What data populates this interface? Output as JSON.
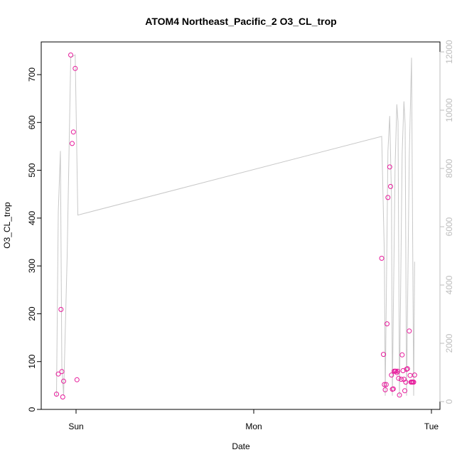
{
  "chart_data": {
    "type": "scatter",
    "title": "ATOM4 Northeast_Pacific_2 O3_CL_trop",
    "xlabel": "Date",
    "ylabel": "O3_CL_trop",
    "x_ticks": [
      "Sun",
      "Mon",
      "Tue"
    ],
    "ylim": [
      0,
      760
    ],
    "yticks": [
      0,
      100,
      200,
      300,
      400,
      500,
      600,
      700
    ],
    "y2lim": [
      0,
      12300
    ],
    "y2ticks": [
      0,
      2000,
      4000,
      6000,
      8000,
      10000,
      12000
    ],
    "grid": false,
    "series": [
      {
        "kind": "points",
        "axis": "left",
        "color": "#e6199a",
        "points": [
          {
            "day": -0.11,
            "value": 32
          },
          {
            "day": -0.1,
            "value": 74
          },
          {
            "day": -0.085,
            "value": 209
          },
          {
            "day": -0.08,
            "value": 79
          },
          {
            "day": -0.075,
            "value": 26
          },
          {
            "day": -0.07,
            "value": 59
          },
          {
            "day": -0.03,
            "value": 741
          },
          {
            "day": -0.022,
            "value": 556
          },
          {
            "day": -0.015,
            "value": 580
          },
          {
            "day": -0.005,
            "value": 713
          },
          {
            "day": 0.005,
            "value": 62
          },
          {
            "day": 1.72,
            "value": 316
          },
          {
            "day": 1.73,
            "value": 115
          },
          {
            "day": 1.735,
            "value": 52
          },
          {
            "day": 1.74,
            "value": 41
          },
          {
            "day": 1.745,
            "value": 52
          },
          {
            "day": 1.75,
            "value": 179
          },
          {
            "day": 1.755,
            "value": 443
          },
          {
            "day": 1.765,
            "value": 507
          },
          {
            "day": 1.77,
            "value": 466
          },
          {
            "day": 1.775,
            "value": 72
          },
          {
            "day": 1.78,
            "value": 42
          },
          {
            "day": 1.785,
            "value": 43
          },
          {
            "day": 1.79,
            "value": 80
          },
          {
            "day": 1.795,
            "value": 80
          },
          {
            "day": 1.8,
            "value": 80
          },
          {
            "day": 1.805,
            "value": 77
          },
          {
            "day": 1.81,
            "value": 80
          },
          {
            "day": 1.815,
            "value": 65
          },
          {
            "day": 1.82,
            "value": 30
          },
          {
            "day": 1.83,
            "value": 63
          },
          {
            "day": 1.835,
            "value": 114
          },
          {
            "day": 1.84,
            "value": 81
          },
          {
            "day": 1.845,
            "value": 63
          },
          {
            "day": 1.85,
            "value": 39
          },
          {
            "day": 1.855,
            "value": 57
          },
          {
            "day": 1.86,
            "value": 84
          },
          {
            "day": 1.865,
            "value": 85
          },
          {
            "day": 1.875,
            "value": 164
          },
          {
            "day": 1.88,
            "value": 71
          },
          {
            "day": 1.885,
            "value": 57
          },
          {
            "day": 1.89,
            "value": 57
          },
          {
            "day": 1.895,
            "value": 57
          },
          {
            "day": 1.9,
            "value": 57
          },
          {
            "day": 1.905,
            "value": 72
          }
        ]
      },
      {
        "kind": "line",
        "axis": "right",
        "color": "#c8c8c8",
        "points": [
          {
            "day": -0.11,
            "value": 200
          },
          {
            "day": -0.1,
            "value": 6500
          },
          {
            "day": -0.088,
            "value": 8600
          },
          {
            "day": -0.08,
            "value": 1200
          },
          {
            "day": -0.07,
            "value": 200
          },
          {
            "day": -0.05,
            "value": 5000
          },
          {
            "day": -0.03,
            "value": 11800
          },
          {
            "day": -0.005,
            "value": 11900
          },
          {
            "day": 0.01,
            "value": 6400
          },
          {
            "day": 1.72,
            "value": 9100
          },
          {
            "day": 1.735,
            "value": 5000
          },
          {
            "day": 1.74,
            "value": 200
          },
          {
            "day": 1.755,
            "value": 8600
          },
          {
            "day": 1.765,
            "value": 9800
          },
          {
            "day": 1.775,
            "value": 7000
          },
          {
            "day": 1.78,
            "value": 200
          },
          {
            "day": 1.795,
            "value": 8000
          },
          {
            "day": 1.805,
            "value": 10200
          },
          {
            "day": 1.812,
            "value": 9600
          },
          {
            "day": 1.82,
            "value": 200
          },
          {
            "day": 1.835,
            "value": 8500
          },
          {
            "day": 1.845,
            "value": 10300
          },
          {
            "day": 1.852,
            "value": 9500
          },
          {
            "day": 1.86,
            "value": 200
          },
          {
            "day": 1.875,
            "value": 8400
          },
          {
            "day": 1.888,
            "value": 11800
          },
          {
            "day": 1.895,
            "value": 4800
          },
          {
            "day": 1.9,
            "value": 200
          },
          {
            "day": 1.905,
            "value": 4800
          }
        ]
      }
    ]
  }
}
